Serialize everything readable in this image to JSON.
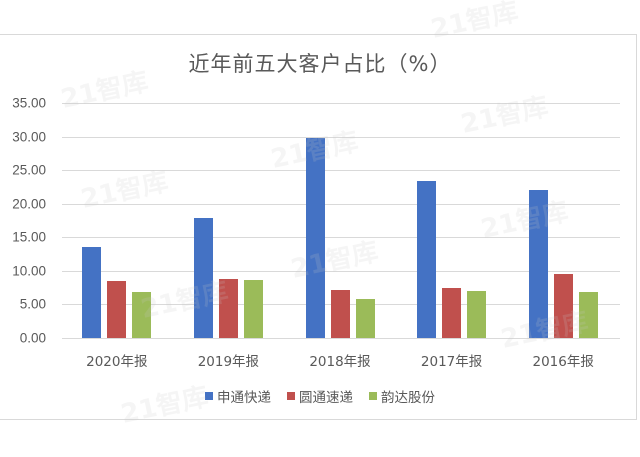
{
  "chart_data": {
    "type": "bar",
    "title": "近年前五大客户占比（%）",
    "xlabel": "",
    "ylabel": "",
    "ylim": [
      0,
      35
    ],
    "yticks": [
      "0.00",
      "5.00",
      "10.00",
      "15.00",
      "20.00",
      "25.00",
      "30.00",
      "35.00"
    ],
    "grid": true,
    "legend_position": "bottom",
    "categories": [
      "2020年报",
      "2019年报",
      "2018年报",
      "2017年报",
      "2016年报"
    ],
    "series": [
      {
        "name": "申通快递",
        "color": "#4472c4",
        "values": [
          13.5,
          17.9,
          29.8,
          23.4,
          22.0
        ]
      },
      {
        "name": "圆通速递",
        "color": "#c0504d",
        "values": [
          8.5,
          8.8,
          7.1,
          7.4,
          9.5
        ]
      },
      {
        "name": "韵达股份",
        "color": "#9bbb59",
        "values": [
          6.8,
          8.6,
          5.8,
          7.0,
          6.9
        ]
      }
    ]
  },
  "watermark": "21智库"
}
